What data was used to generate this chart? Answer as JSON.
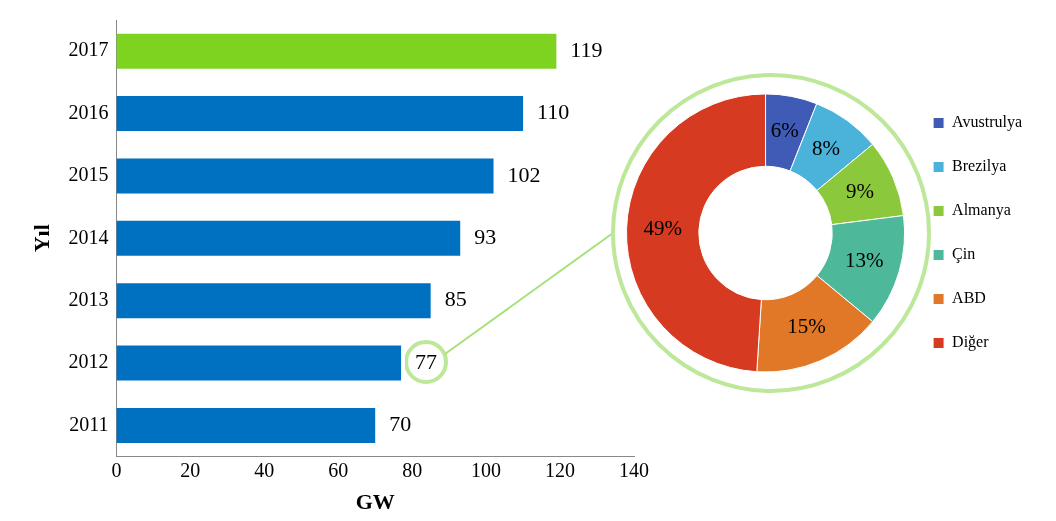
{
  "chart_data": [
    {
      "type": "bar",
      "orientation": "horizontal",
      "categories": [
        "2017",
        "2016",
        "2015",
        "2014",
        "2013",
        "2012",
        "2011"
      ],
      "values": [
        119,
        110,
        102,
        93,
        85,
        77,
        70
      ],
      "colors": [
        "#7ed321",
        "#0070c0",
        "#0070c0",
        "#0070c0",
        "#0070c0",
        "#0070c0",
        "#0070c0"
      ],
      "xlim": [
        0,
        140
      ],
      "xticks": [
        0,
        20,
        40,
        60,
        80,
        100,
        120,
        140
      ],
      "xlabel": "GW",
      "ylabel": "Yıl",
      "data_labels": true
    },
    {
      "type": "donut",
      "categories": [
        "Avustrulya",
        "Brezilya",
        "Almanya",
        "Çin",
        "ABD",
        "Diğer"
      ],
      "values": [
        6,
        8,
        9,
        13,
        15,
        49
      ],
      "colors": [
        "#3f5bb5",
        "#4bb3d9",
        "#8cc83c",
        "#4db89a",
        "#e07828",
        "#d63a20"
      ],
      "value_labels": [
        "6%",
        "8%",
        "9%",
        "13%",
        "15%",
        "49%"
      ],
      "legend": "right"
    }
  ]
}
